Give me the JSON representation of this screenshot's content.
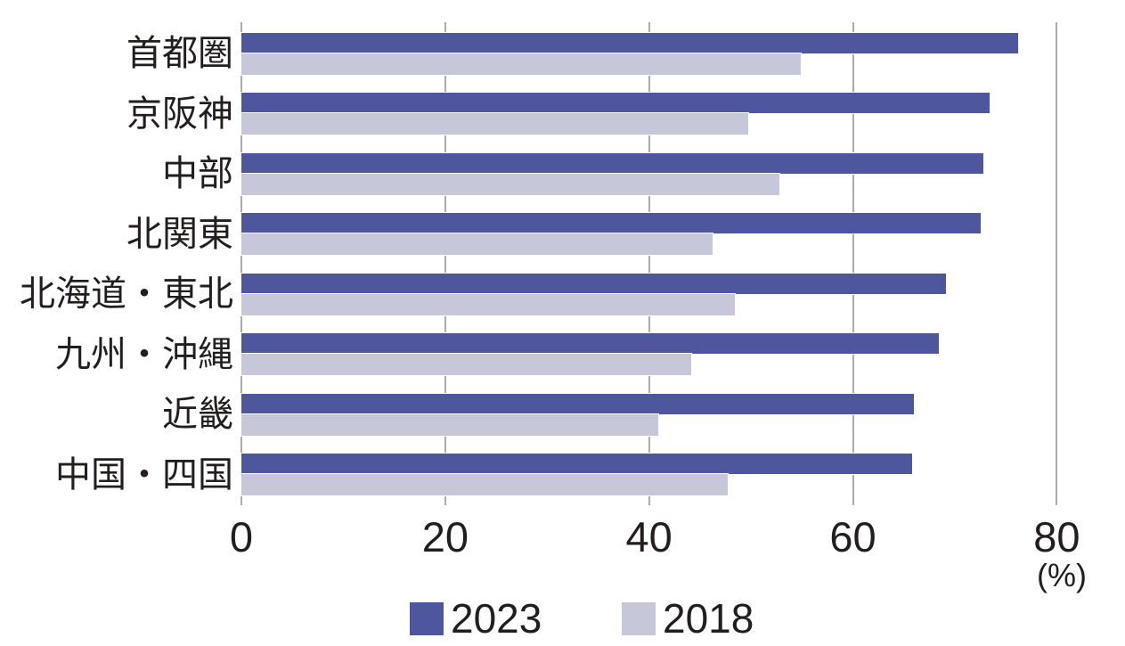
{
  "chart_data": {
    "type": "bar",
    "orientation": "horizontal",
    "title": "",
    "xlabel": "",
    "ylabel": "",
    "x_unit_label": "(%)",
    "xlim": [
      0,
      80
    ],
    "x_ticks": [
      0,
      20,
      40,
      60,
      80
    ],
    "grid": "vertical-only",
    "legend_position": "bottom-center",
    "categories": [
      "首都圏",
      "京阪神",
      "中部",
      "北関東",
      "北海道・東北",
      "九州・沖縄",
      "近畿",
      "中国・四国"
    ],
    "series": [
      {
        "name": "2023",
        "color": "#4E569D",
        "values": [
          76.2,
          73.4,
          72.8,
          72.5,
          69.1,
          68.4,
          66.0,
          65.8
        ]
      },
      {
        "name": "2018",
        "color": "#C6C8DA",
        "values": [
          54.9,
          49.7,
          52.8,
          46.2,
          48.4,
          44.1,
          40.9,
          47.7
        ]
      }
    ]
  },
  "colors": {
    "background": "#FFFFFF",
    "gridline": "#ABABAB",
    "text": "#231E1E",
    "bar_stroke": "#FFFFFF"
  }
}
